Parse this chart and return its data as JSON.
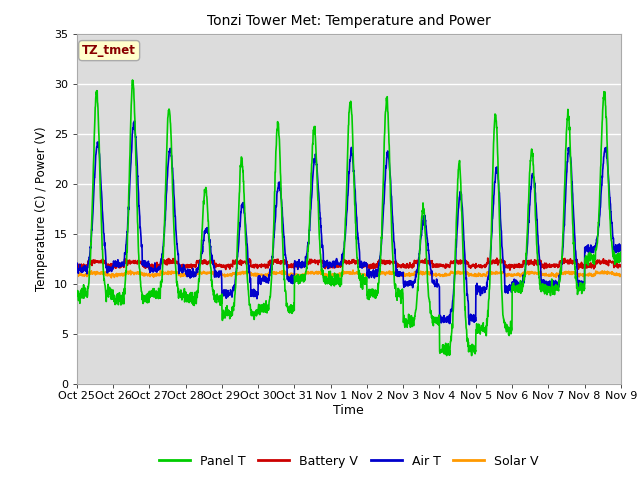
{
  "title": "Tonzi Tower Met: Temperature and Power",
  "xlabel": "Time",
  "ylabel": "Temperature (C) / Power (V)",
  "annotation": "TZ_tmet",
  "annotation_bg": "#FFFFCC",
  "annotation_border": "#AAAAAA",
  "annotation_text_color": "#880000",
  "ylim": [
    0,
    35
  ],
  "yticks": [
    0,
    5,
    10,
    15,
    20,
    25,
    30,
    35
  ],
  "xtick_labels": [
    "Oct 25",
    "Oct 26",
    "Oct 27",
    "Oct 28",
    "Oct 29",
    "Oct 30",
    "Oct 31",
    "Nov 1",
    "Nov 2",
    "Nov 3",
    "Nov 4",
    "Nov 5",
    "Nov 6",
    "Nov 7",
    "Nov 8",
    "Nov 9"
  ],
  "colors": {
    "panel_t": "#00CC00",
    "battery_v": "#CC0000",
    "air_t": "#0000CC",
    "solar_v": "#FF9900"
  },
  "legend_labels": [
    "Panel T",
    "Battery V",
    "Air T",
    "Solar V"
  ],
  "plot_bg": "#DCDCDC",
  "grid_color": "#FFFFFF",
  "linewidth": 1.2,
  "panel_peaks": [
    29,
    30,
    27.5,
    19.5,
    22.5,
    26,
    25.5,
    28.3,
    28.3,
    17.5,
    22,
    27,
    23.5,
    27,
    29
  ],
  "panel_troughs": [
    9,
    8.5,
    9,
    8.5,
    7,
    7.5,
    10.5,
    10.3,
    9,
    6.3,
    3.5,
    5.5,
    9.5,
    9.5,
    12.5
  ],
  "air_peaks": [
    24,
    26,
    23.5,
    15.5,
    18,
    20,
    22.5,
    23,
    23,
    16.5,
    19,
    21.5,
    21,
    23.5,
    23.5
  ],
  "air_troughs": [
    11.5,
    12,
    11.5,
    11,
    9,
    10.5,
    12,
    12,
    11,
    10,
    6.5,
    9.5,
    10,
    10,
    13.5
  ]
}
